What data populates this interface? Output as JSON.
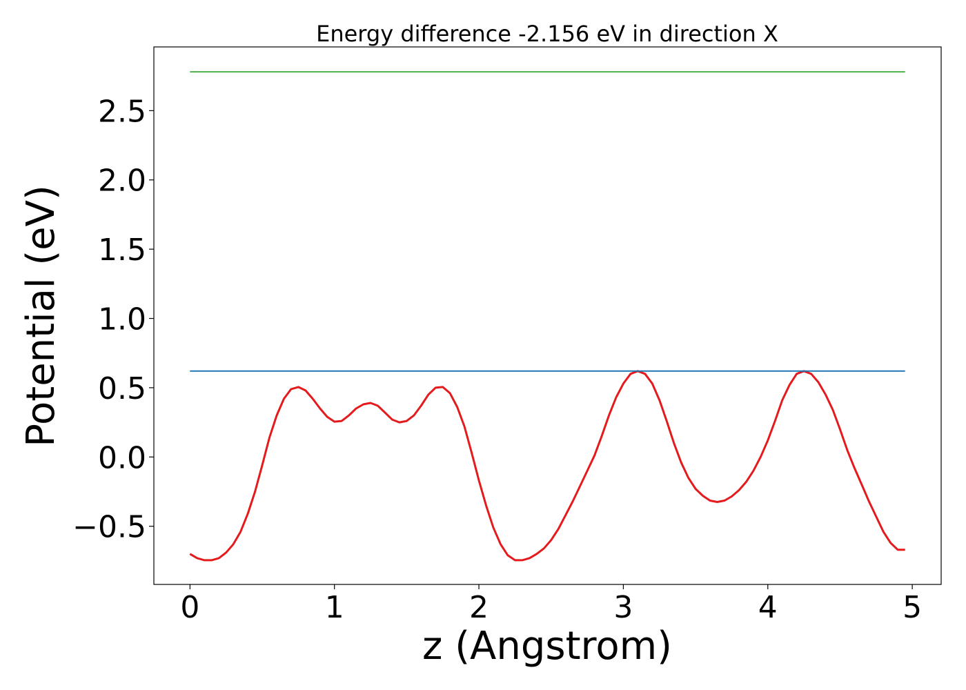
{
  "chart_data": {
    "type": "line",
    "title": "Energy difference -2.156 eV in direction X",
    "xlabel": "z (Angstrom)",
    "ylabel": "Potential (eV)",
    "xlim": [
      -0.25,
      5.2
    ],
    "ylim": [
      -0.92,
      2.96
    ],
    "x_ticks": [
      0,
      1,
      2,
      3,
      4,
      5
    ],
    "x_tick_labels": [
      "0",
      "1",
      "2",
      "3",
      "4",
      "5"
    ],
    "y_ticks": [
      -0.5,
      0.0,
      0.5,
      1.0,
      1.5,
      2.0,
      2.5
    ],
    "y_tick_labels": [
      "−0.5",
      "0.0",
      "0.5",
      "1.0",
      "1.5",
      "2.0",
      "2.5"
    ],
    "grid": false,
    "legend": "none",
    "series": [
      {
        "color": "#e41a1c",
        "x": [
          0,
          0.05,
          0.1,
          0.15,
          0.2,
          0.25,
          0.3,
          0.35,
          0.4,
          0.45,
          0.5,
          0.55,
          0.6,
          0.65,
          0.7,
          0.75,
          0.8,
          0.85,
          0.9,
          0.95,
          1.0,
          1.05,
          1.1,
          1.15,
          1.2,
          1.25,
          1.3,
          1.35,
          1.4,
          1.45,
          1.5,
          1.55,
          1.6,
          1.65,
          1.7,
          1.75,
          1.8,
          1.85,
          1.9,
          1.95,
          2.0,
          2.05,
          2.1,
          2.15,
          2.2,
          2.25,
          2.3,
          2.35,
          2.4,
          2.45,
          2.5,
          2.55,
          2.6,
          2.65,
          2.7,
          2.75,
          2.8,
          2.85,
          2.9,
          2.95,
          3.0,
          3.05,
          3.1,
          3.15,
          3.2,
          3.25,
          3.3,
          3.35,
          3.4,
          3.45,
          3.5,
          3.55,
          3.6,
          3.65,
          3.7,
          3.75,
          3.8,
          3.85,
          3.9,
          3.95,
          4.0,
          4.05,
          4.1,
          4.15,
          4.2,
          4.25,
          4.3,
          4.35,
          4.4,
          4.45,
          4.5,
          4.55,
          4.6,
          4.65,
          4.7,
          4.75,
          4.8,
          4.85,
          4.9,
          4.95
        ],
        "y": [
          -0.7,
          -0.73,
          -0.745,
          -0.745,
          -0.73,
          -0.69,
          -0.63,
          -0.54,
          -0.41,
          -0.25,
          -0.06,
          0.14,
          0.3,
          0.42,
          0.49,
          0.505,
          0.48,
          0.42,
          0.35,
          0.29,
          0.255,
          0.26,
          0.3,
          0.35,
          0.38,
          0.39,
          0.37,
          0.32,
          0.27,
          0.25,
          0.26,
          0.3,
          0.37,
          0.45,
          0.5,
          0.505,
          0.46,
          0.36,
          0.22,
          0.03,
          -0.17,
          -0.35,
          -0.51,
          -0.63,
          -0.71,
          -0.745,
          -0.745,
          -0.73,
          -0.7,
          -0.66,
          -0.6,
          -0.52,
          -0.42,
          -0.32,
          -0.21,
          -0.1,
          0.01,
          0.15,
          0.3,
          0.43,
          0.53,
          0.6,
          0.62,
          0.6,
          0.53,
          0.41,
          0.26,
          0.1,
          -0.04,
          -0.15,
          -0.23,
          -0.28,
          -0.315,
          -0.325,
          -0.315,
          -0.285,
          -0.24,
          -0.18,
          -0.1,
          0.0,
          0.12,
          0.26,
          0.41,
          0.52,
          0.6,
          0.62,
          0.6,
          0.54,
          0.45,
          0.34,
          0.2,
          0.05,
          -0.08,
          -0.2,
          -0.32,
          -0.43,
          -0.54,
          -0.62,
          -0.67,
          -0.67
        ]
      },
      {
        "color": "#1f77b4",
        "x": [
          0,
          4.95
        ],
        "y": [
          0.62,
          0.62
        ]
      },
      {
        "color": "#4daf4a",
        "x": [
          0,
          4.95
        ],
        "y": [
          2.78,
          2.78
        ]
      }
    ]
  }
}
